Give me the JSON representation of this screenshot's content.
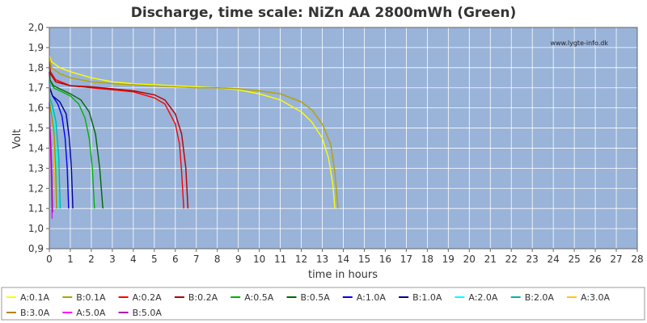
{
  "chart_data": {
    "type": "line",
    "title": "Discharge, time scale: NiZn AA 2800mWh (Green)",
    "xlabel": "time in hours",
    "ylabel": "Volt",
    "watermark": "www.lygte-info.dk",
    "xlim": [
      0,
      28
    ],
    "ylim": [
      0.9,
      2.0
    ],
    "x_ticks": [
      "0",
      "1",
      "2",
      "3",
      "4",
      "5",
      "6",
      "7",
      "8",
      "9",
      "10",
      "11",
      "12",
      "13",
      "14",
      "15",
      "16",
      "17",
      "18",
      "19",
      "20",
      "21",
      "22",
      "23",
      "24",
      "25",
      "26",
      "27",
      "28"
    ],
    "y_ticks": [
      "0,9",
      "1,0",
      "1,1",
      "1,2",
      "1,3",
      "1,4",
      "1,5",
      "1,6",
      "1,7",
      "1,8",
      "1,9",
      "2,0"
    ],
    "grid": true,
    "legend_position": "bottom",
    "plot_background": "#99b3d9",
    "series": [
      {
        "name": "A:0.1A",
        "color": "#ffff00",
        "x": [
          0,
          0.1,
          0.5,
          1,
          2,
          3,
          4,
          5,
          6,
          7,
          8,
          9,
          10,
          11,
          12,
          12.5,
          13,
          13.3,
          13.5,
          13.6
        ],
        "y": [
          1.86,
          1.83,
          1.8,
          1.78,
          1.75,
          1.73,
          1.72,
          1.715,
          1.71,
          1.705,
          1.7,
          1.69,
          1.67,
          1.64,
          1.58,
          1.53,
          1.45,
          1.35,
          1.22,
          1.1
        ]
      },
      {
        "name": "B:0.1A",
        "color": "#b3a300",
        "x": [
          0,
          0.1,
          0.5,
          1,
          2,
          3,
          4,
          5,
          6,
          7,
          8,
          9,
          10,
          11,
          12,
          12.5,
          13,
          13.4,
          13.6,
          13.75
        ],
        "y": [
          1.85,
          1.8,
          1.77,
          1.75,
          1.73,
          1.72,
          1.715,
          1.71,
          1.705,
          1.7,
          1.7,
          1.695,
          1.685,
          1.67,
          1.63,
          1.59,
          1.52,
          1.42,
          1.28,
          1.1
        ]
      },
      {
        "name": "A:0.2A",
        "color": "#ff0000",
        "x": [
          0,
          0.05,
          0.3,
          1,
          2,
          3,
          4,
          5,
          5.5,
          6,
          6.2,
          6.3,
          6.4
        ],
        "y": [
          1.83,
          1.78,
          1.74,
          1.71,
          1.7,
          1.69,
          1.68,
          1.65,
          1.62,
          1.52,
          1.42,
          1.28,
          1.1
        ]
      },
      {
        "name": "B:0.2A",
        "color": "#b30000",
        "x": [
          0,
          0.05,
          0.3,
          1,
          2,
          3,
          4,
          5,
          5.5,
          6,
          6.3,
          6.5,
          6.6
        ],
        "y": [
          1.82,
          1.77,
          1.73,
          1.71,
          1.705,
          1.695,
          1.685,
          1.665,
          1.64,
          1.57,
          1.47,
          1.3,
          1.1
        ]
      },
      {
        "name": "A:0.5A",
        "color": "#00b300",
        "x": [
          0,
          0.03,
          0.2,
          0.6,
          1,
          1.4,
          1.7,
          1.9,
          2.05,
          2.15
        ],
        "y": [
          1.81,
          1.74,
          1.7,
          1.68,
          1.66,
          1.62,
          1.55,
          1.45,
          1.3,
          1.1
        ]
      },
      {
        "name": "B:0.5A",
        "color": "#006600",
        "x": [
          0,
          0.03,
          0.2,
          0.6,
          1,
          1.5,
          1.9,
          2.2,
          2.4,
          2.55
        ],
        "y": [
          1.8,
          1.74,
          1.71,
          1.69,
          1.67,
          1.64,
          1.58,
          1.47,
          1.3,
          1.1
        ]
      },
      {
        "name": "A:1.0A",
        "color": "#0000ff",
        "x": [
          0,
          0.02,
          0.15,
          0.4,
          0.6,
          0.75,
          0.85,
          0.92
        ],
        "y": [
          1.78,
          1.7,
          1.66,
          1.62,
          1.56,
          1.45,
          1.3,
          1.1
        ]
      },
      {
        "name": "B:1.0A",
        "color": "#000099",
        "x": [
          0,
          0.02,
          0.15,
          0.5,
          0.8,
          0.95,
          1.05,
          1.12
        ],
        "y": [
          1.78,
          1.7,
          1.66,
          1.63,
          1.57,
          1.45,
          1.3,
          1.1
        ]
      },
      {
        "name": "A:2.0A",
        "color": "#00ffff",
        "x": [
          0,
          0.02,
          0.12,
          0.25,
          0.35,
          0.42
        ],
        "y": [
          1.74,
          1.65,
          1.6,
          1.52,
          1.35,
          1.1
        ]
      },
      {
        "name": "B:2.0A",
        "color": "#00b3b3",
        "x": [
          0,
          0.02,
          0.15,
          0.32,
          0.45,
          0.52
        ],
        "y": [
          1.74,
          1.65,
          1.61,
          1.53,
          1.35,
          1.1
        ]
      },
      {
        "name": "A:3.0A",
        "color": "#ffcc00",
        "x": [
          0,
          0.02,
          0.1,
          0.2,
          0.26,
          0.3
        ],
        "y": [
          1.7,
          1.62,
          1.57,
          1.48,
          1.3,
          1.1
        ]
      },
      {
        "name": "B:3.0A",
        "color": "#b38600",
        "x": [
          0,
          0.02,
          0.1,
          0.22,
          0.3,
          0.34
        ],
        "y": [
          1.7,
          1.62,
          1.57,
          1.48,
          1.3,
          1.1
        ]
      },
      {
        "name": "A:5.0A",
        "color": "#ff00ff",
        "x": [
          0,
          0.02,
          0.06,
          0.1,
          0.13
        ],
        "y": [
          1.62,
          1.5,
          1.4,
          1.25,
          1.05
        ]
      },
      {
        "name": "B:5.0A",
        "color": "#b300b3",
        "x": [
          0,
          0.02,
          0.07,
          0.12,
          0.15
        ],
        "y": [
          1.63,
          1.52,
          1.42,
          1.26,
          1.08
        ]
      }
    ]
  }
}
